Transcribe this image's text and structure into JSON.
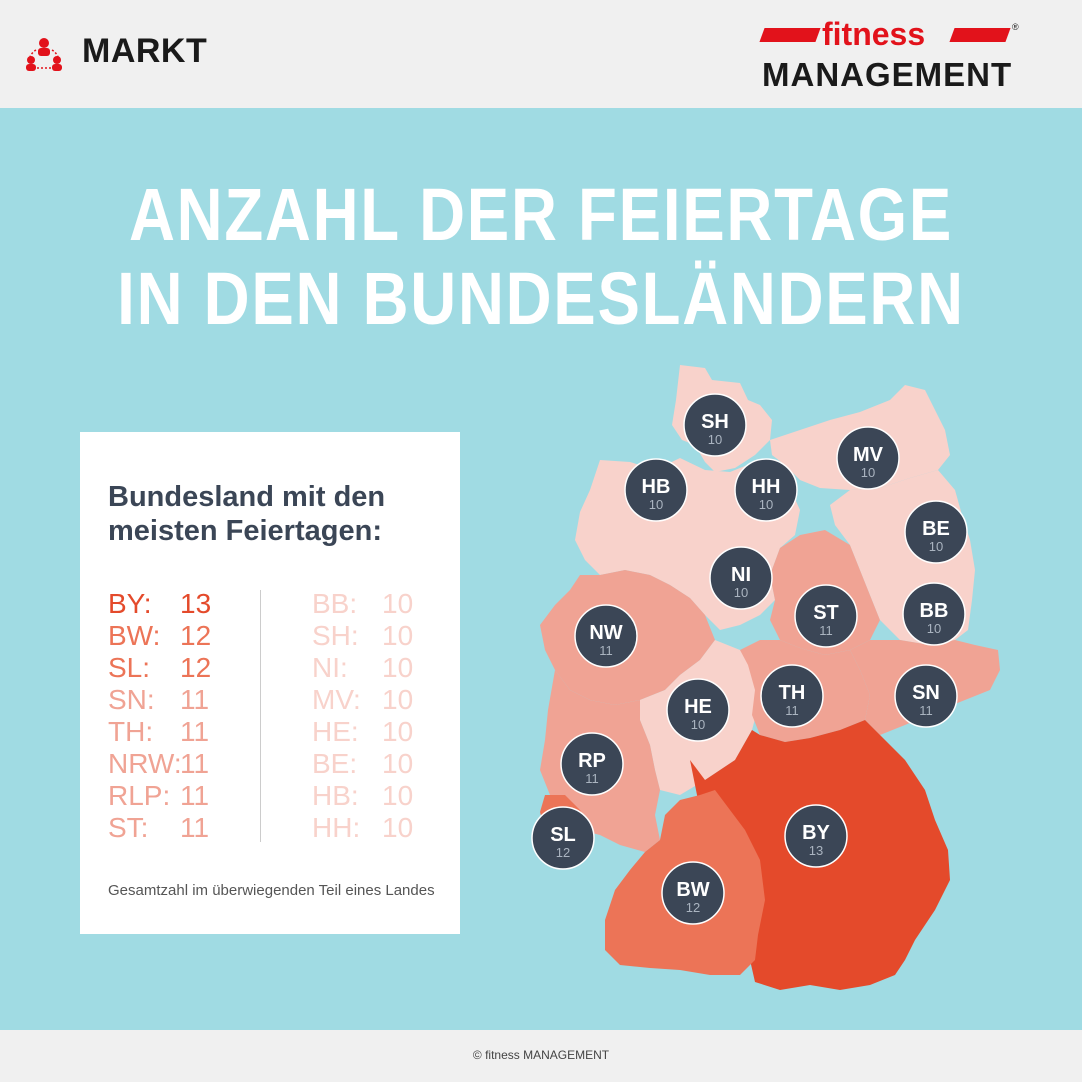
{
  "header": {
    "section_label": "MARKT",
    "section_icon": "people-network-icon",
    "brand_top": "fitness",
    "brand_bottom": "MANAGEMENT",
    "brand_registered": "®"
  },
  "title": {
    "line1": "ANZAHL DER FEIERTAGE",
    "line2": "IN DEN BUNDESLÄNDERN"
  },
  "card": {
    "heading_line1": "Bundesland mit den",
    "heading_line2": "meisten Feiertagen:",
    "left_list": [
      {
        "code": "BY:",
        "value": "13"
      },
      {
        "code": "BW:",
        "value": "12"
      },
      {
        "code": "SL:",
        "value": "12"
      },
      {
        "code": "SN:",
        "value": "11"
      },
      {
        "code": "TH:",
        "value": "11"
      },
      {
        "code": "NRW:",
        "value": "11"
      },
      {
        "code": "RLP:",
        "value": "11"
      },
      {
        "code": "ST:",
        "value": "11"
      }
    ],
    "right_list": [
      {
        "code": "BB:",
        "value": "10"
      },
      {
        "code": "SH:",
        "value": "10"
      },
      {
        "code": "NI:",
        "value": "10"
      },
      {
        "code": "MV:",
        "value": "10"
      },
      {
        "code": "HE:",
        "value": "10"
      },
      {
        "code": "BE:",
        "value": "10"
      },
      {
        "code": "HB:",
        "value": "10"
      },
      {
        "code": "HH:",
        "value": "10"
      }
    ],
    "footnote": "Gesamtzahl im überwiegenden Teil eines Landes"
  },
  "map_states": [
    {
      "code": "SH",
      "value": "10"
    },
    {
      "code": "MV",
      "value": "10"
    },
    {
      "code": "HB",
      "value": "10"
    },
    {
      "code": "HH",
      "value": "10"
    },
    {
      "code": "BE",
      "value": "10"
    },
    {
      "code": "NI",
      "value": "10"
    },
    {
      "code": "ST",
      "value": "11"
    },
    {
      "code": "BB",
      "value": "10"
    },
    {
      "code": "NW",
      "value": "11"
    },
    {
      "code": "TH",
      "value": "11"
    },
    {
      "code": "SN",
      "value": "11"
    },
    {
      "code": "HE",
      "value": "10"
    },
    {
      "code": "RP",
      "value": "11"
    },
    {
      "code": "SL",
      "value": "12"
    },
    {
      "code": "BY",
      "value": "13"
    },
    {
      "code": "BW",
      "value": "12"
    }
  ],
  "colors": {
    "background": "#a0dbe3",
    "holidays_10": "#f8d2cb",
    "holidays_11": "#f0a394",
    "holidays_12": "#ec7457",
    "holidays_13": "#e44a2b",
    "circle": "#3b4656",
    "brand_red": "#e2121b"
  },
  "footer": {
    "copyright": "© fitness MANAGEMENT"
  }
}
